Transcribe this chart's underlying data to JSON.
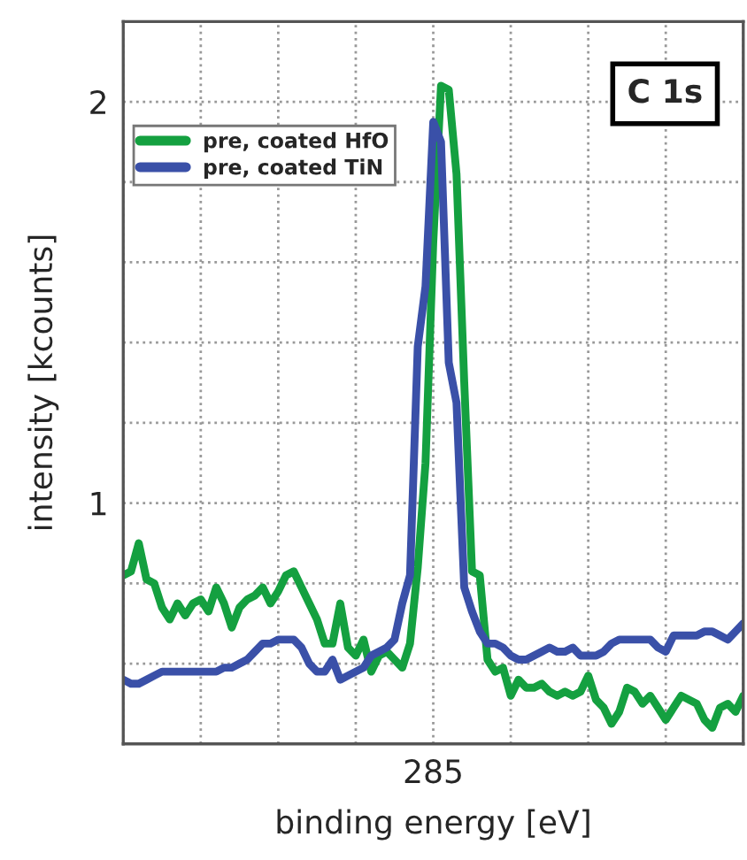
{
  "chart_data": {
    "type": "line",
    "xlabel": "binding energy [eV]",
    "ylabel": "intensity [kcounts]",
    "annotations": [
      "C 1s"
    ],
    "categories": [
      null,
      null,
      null,
      null,
      null,
      null,
      null,
      null,
      null,
      null,
      null,
      null,
      null,
      null,
      null,
      null,
      null,
      null,
      null,
      null,
      null,
      null,
      null,
      null,
      null,
      null,
      null,
      null,
      null,
      null,
      null,
      null,
      null,
      null,
      null,
      null,
      null,
      null,
      null,
      null,
      "285",
      null,
      null,
      null,
      null,
      null,
      null,
      null,
      null,
      null,
      null,
      null,
      null,
      null,
      null,
      null,
      null,
      null,
      null,
      null,
      null,
      null,
      null,
      null,
      null,
      null,
      null,
      null,
      null,
      null,
      null,
      null,
      null,
      null,
      null,
      null,
      null,
      null,
      null,
      null,
      null
    ],
    "ylim": [
      0.4,
      2.2
    ],
    "yticks": [
      {
        "value": 0.6,
        "label": null
      },
      {
        "value": 0.8,
        "label": null
      },
      1,
      {
        "value": 1.2,
        "label": null
      },
      {
        "value": 1.4,
        "label": null
      },
      {
        "value": 1.6,
        "label": null
      },
      {
        "value": 1.8,
        "label": null
      },
      2
    ],
    "grid": true,
    "legend": "top left",
    "line_style": "solid",
    "marker": "none",
    "series": [
      {
        "name": "pre, coated HfO",
        "color": "#14a040",
        "values": [
          0.82,
          0.83,
          0.9,
          0.81,
          0.8,
          0.74,
          0.71,
          0.75,
          0.72,
          0.75,
          0.76,
          0.73,
          0.79,
          0.75,
          0.69,
          0.74,
          0.76,
          0.77,
          0.79,
          0.75,
          0.78,
          0.82,
          0.83,
          0.79,
          0.75,
          0.71,
          0.65,
          0.65,
          0.75,
          0.64,
          0.62,
          0.66,
          0.58,
          0.62,
          0.63,
          0.61,
          0.59,
          0.65,
          0.84,
          1.1,
          1.65,
          2.04,
          2.03,
          1.82,
          1.3,
          0.83,
          0.82,
          0.61,
          0.58,
          0.59,
          0.52,
          0.56,
          0.54,
          0.54,
          0.55,
          0.53,
          0.52,
          0.53,
          0.52,
          0.53,
          0.57,
          0.51,
          0.49,
          0.45,
          0.48,
          0.54,
          0.53,
          0.5,
          0.52,
          0.49,
          0.46,
          0.49,
          0.52,
          0.51,
          0.5,
          0.46,
          0.44,
          0.49,
          0.5,
          0.48,
          0.52
        ]
      },
      {
        "name": "pre, coated TiN",
        "color": "#3a50a8",
        "values": [
          0.56,
          0.55,
          0.55,
          0.56,
          0.57,
          0.58,
          0.58,
          0.58,
          0.58,
          0.58,
          0.58,
          0.58,
          0.58,
          0.59,
          0.59,
          0.6,
          0.61,
          0.63,
          0.65,
          0.65,
          0.66,
          0.66,
          0.66,
          0.64,
          0.6,
          0.58,
          0.58,
          0.61,
          0.56,
          0.57,
          0.58,
          0.59,
          0.62,
          0.63,
          0.64,
          0.66,
          0.75,
          0.82,
          1.39,
          1.54,
          1.95,
          1.9,
          1.35,
          1.25,
          0.79,
          0.73,
          0.68,
          0.65,
          0.65,
          0.64,
          0.62,
          0.61,
          0.61,
          0.62,
          0.63,
          0.64,
          0.63,
          0.63,
          0.64,
          0.62,
          0.62,
          0.62,
          0.63,
          0.65,
          0.66,
          0.66,
          0.66,
          0.66,
          0.66,
          0.64,
          0.63,
          0.67,
          0.67,
          0.67,
          0.67,
          0.68,
          0.68,
          0.67,
          0.66,
          0.68,
          0.7
        ]
      }
    ]
  }
}
